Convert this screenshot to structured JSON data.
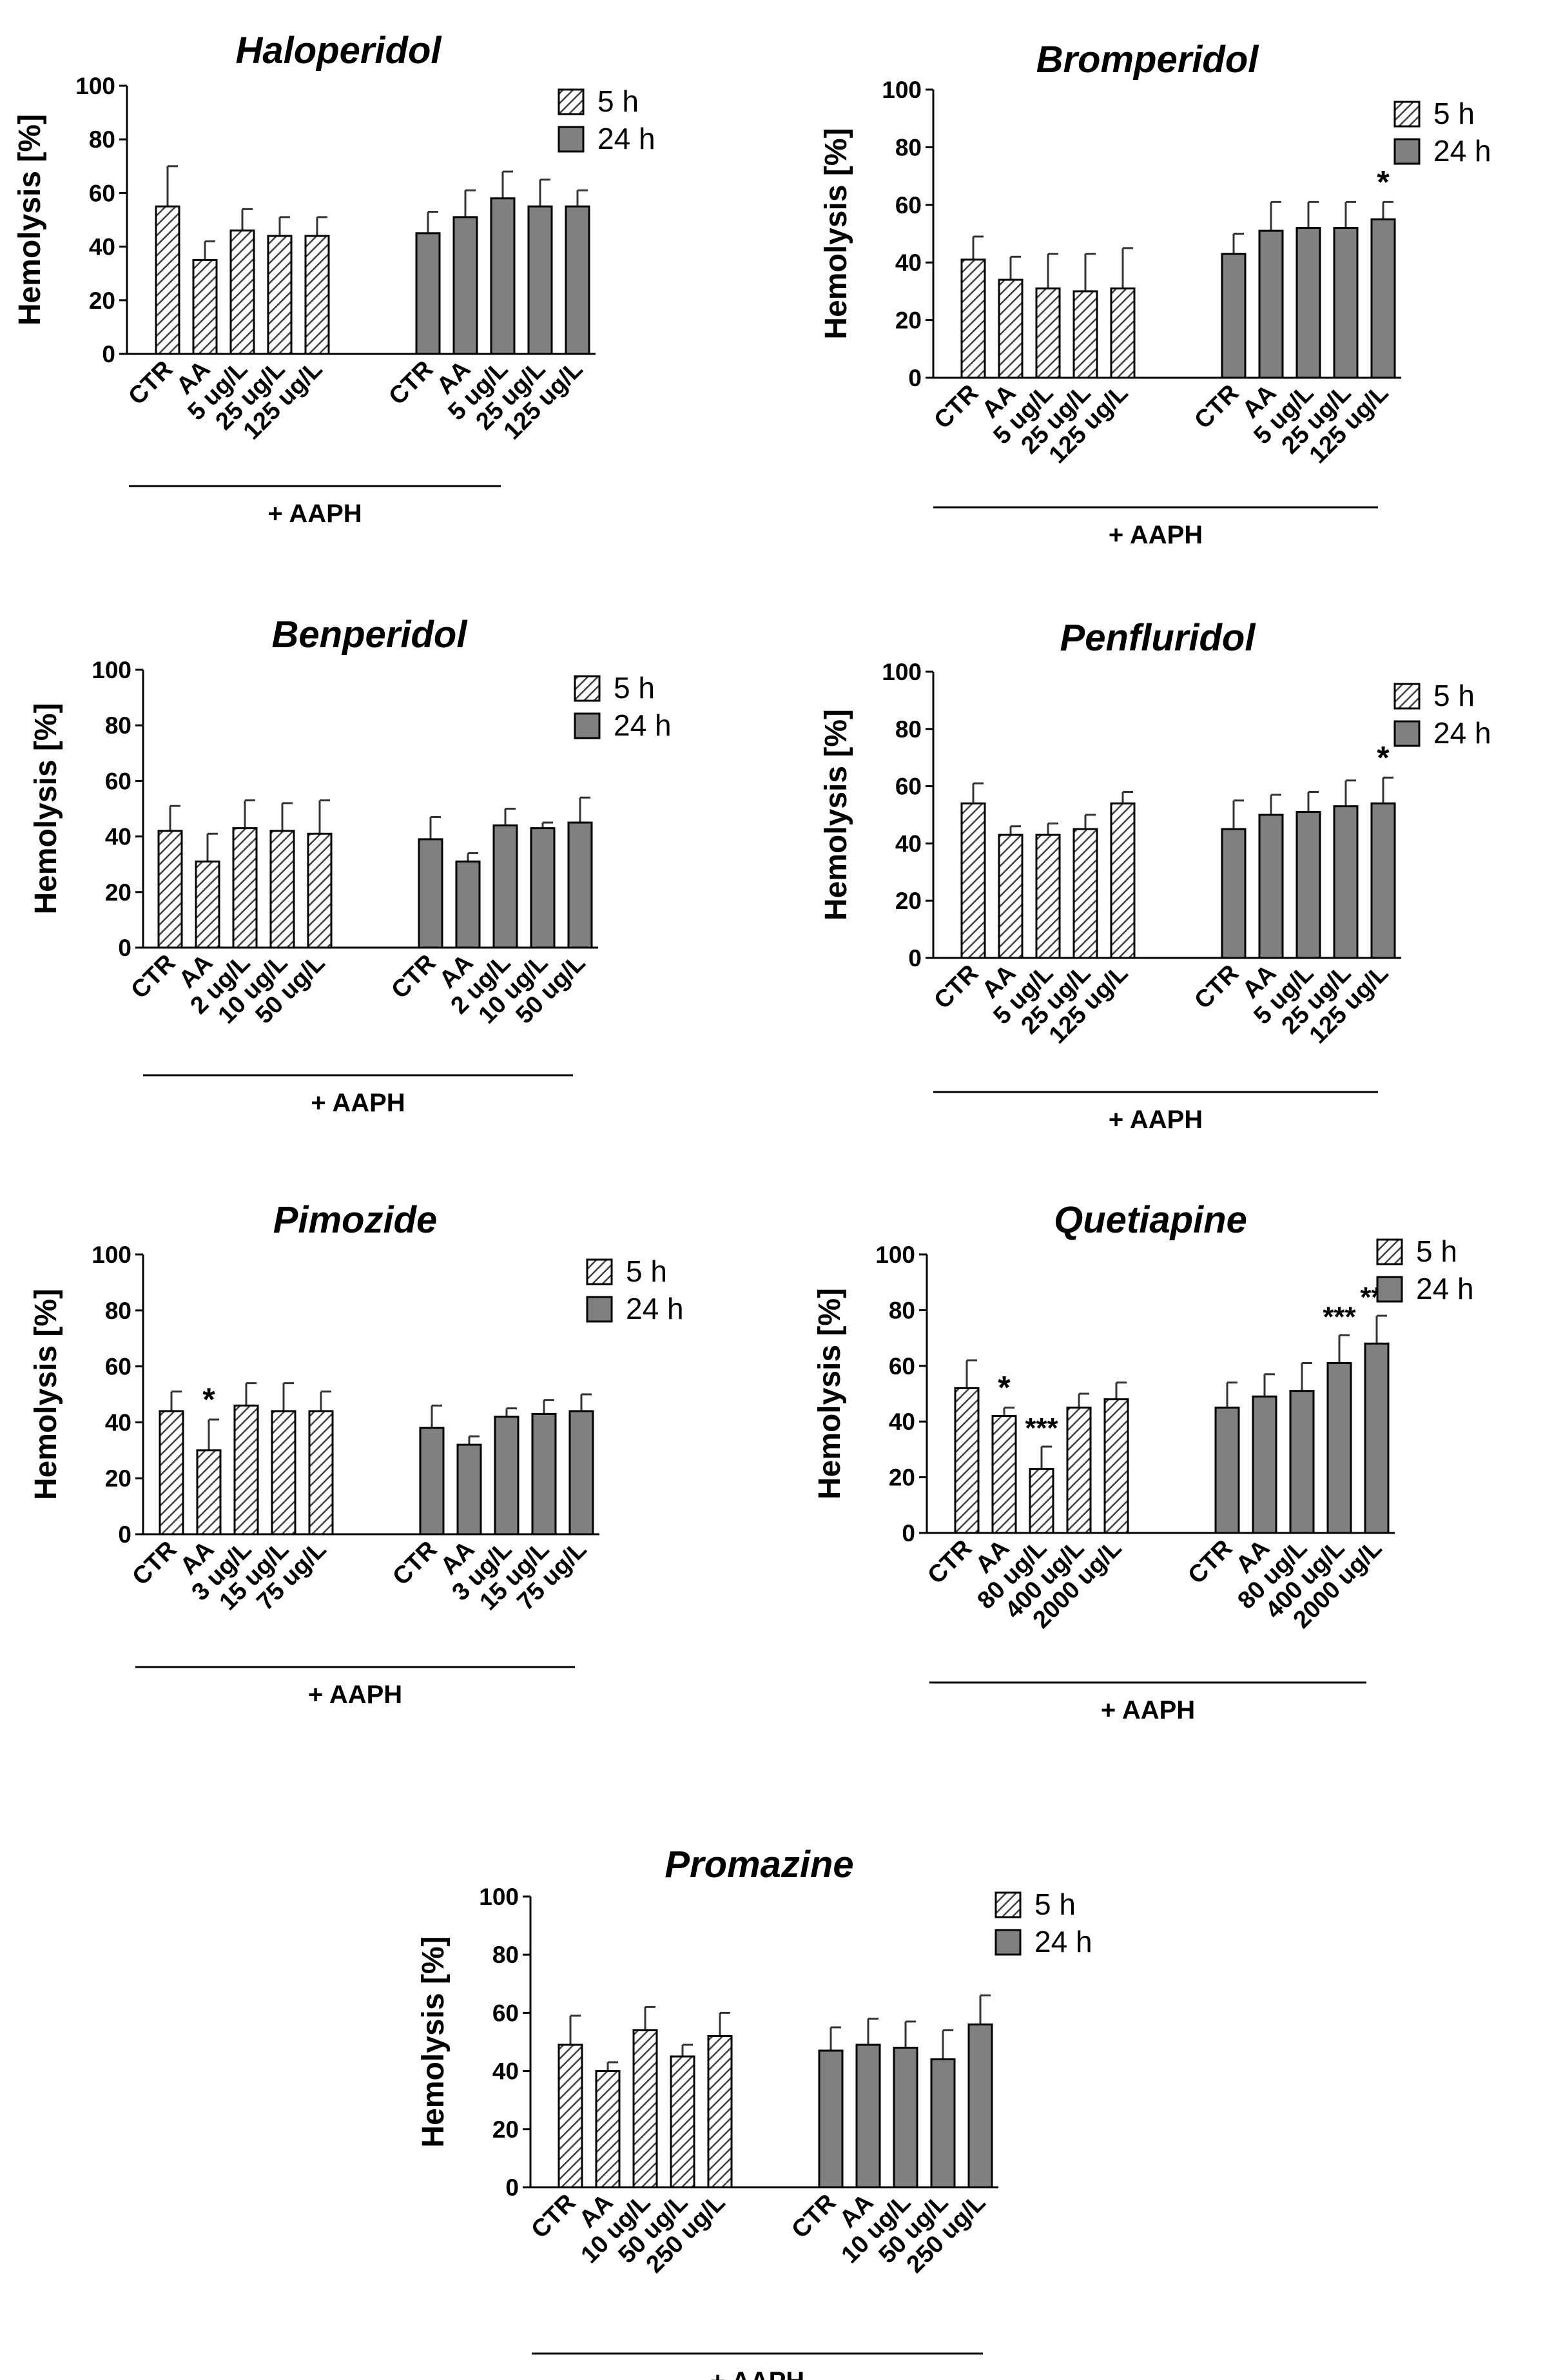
{
  "figure": {
    "common": {
      "ylabel": "Hemolysis [%]",
      "ylim": [
        0,
        100
      ],
      "yticks": [
        "0",
        "20",
        "40",
        "60",
        "80",
        "100"
      ],
      "bracket_label": "+ AAPH",
      "legend": [
        {
          "name": "5 h",
          "pattern": "hatched"
        },
        {
          "name": "24 h",
          "pattern": "solid"
        }
      ],
      "colors": {
        "bar_24h": "#808080",
        "hatch_bg": "#ffffff",
        "hatch_line": "#404040",
        "axis": "#000000"
      }
    }
  },
  "chart_data": [
    {
      "type": "bar",
      "title": "Haloperidol",
      "ylabel": "Hemolysis [%]",
      "ylim": [
        0,
        100
      ],
      "xlabel": "+ AAPH",
      "series": [
        {
          "name": "5 h",
          "categories": [
            "CTR",
            "AA",
            "5 ug/L",
            "25 ug/L",
            "125 ug/L"
          ],
          "values": [
            55,
            35,
            46,
            44,
            44
          ],
          "errors": [
            15,
            7,
            8,
            7,
            7
          ],
          "marks": [
            "",
            "",
            "",
            "",
            ""
          ]
        },
        {
          "name": "24 h",
          "categories": [
            "CTR",
            "AA",
            "5 ug/L",
            "25 ug/L",
            "125 ug/L"
          ],
          "values": [
            45,
            51,
            58,
            55,
            55
          ],
          "errors": [
            8,
            10,
            10,
            10,
            6
          ],
          "marks": [
            "",
            "",
            "",
            "",
            ""
          ]
        }
      ]
    },
    {
      "type": "bar",
      "title": "Bromperidol",
      "ylabel": "Hemolysis [%]",
      "ylim": [
        0,
        100
      ],
      "xlabel": "+ AAPH",
      "series": [
        {
          "name": "5 h",
          "categories": [
            "CTR",
            "AA",
            "5 ug/L",
            "25 ug/L",
            "125 ug/L"
          ],
          "values": [
            41,
            34,
            31,
            30,
            31
          ],
          "errors": [
            8,
            8,
            12,
            13,
            14
          ],
          "marks": [
            "",
            "",
            "",
            "",
            ""
          ]
        },
        {
          "name": "24 h",
          "categories": [
            "CTR",
            "AA",
            "5 ug/L",
            "25 ug/L",
            "125 ug/L"
          ],
          "values": [
            43,
            51,
            52,
            52,
            55
          ],
          "errors": [
            7,
            10,
            9,
            9,
            6
          ],
          "marks": [
            "",
            "",
            "",
            "",
            "*"
          ]
        }
      ]
    },
    {
      "type": "bar",
      "title": "Benperidol",
      "ylabel": "Hemolysis [%]",
      "ylim": [
        0,
        100
      ],
      "xlabel": "+ AAPH",
      "series": [
        {
          "name": "5 h",
          "categories": [
            "CTR",
            "AA",
            "2 ug/L",
            "10 ug/L",
            "50 ug/L"
          ],
          "values": [
            42,
            31,
            43,
            42,
            41
          ],
          "errors": [
            9,
            10,
            10,
            10,
            12
          ],
          "marks": [
            "",
            "",
            "",
            "",
            ""
          ]
        },
        {
          "name": "24 h",
          "categories": [
            "CTR",
            "AA",
            "2 ug/L",
            "10 ug/L",
            "50 ug/L"
          ],
          "values": [
            39,
            31,
            44,
            43,
            45
          ],
          "errors": [
            8,
            3,
            6,
            2,
            9
          ],
          "marks": [
            "",
            "",
            "",
            "",
            ""
          ]
        }
      ]
    },
    {
      "type": "bar",
      "title": "Penfluridol",
      "ylabel": "Hemolysis [%]",
      "ylim": [
        0,
        100
      ],
      "xlabel": "+ AAPH",
      "series": [
        {
          "name": "5 h",
          "categories": [
            "CTR",
            "AA",
            "5 ug/L",
            "25 ug/L",
            "125 ug/L"
          ],
          "values": [
            54,
            43,
            43,
            45,
            54
          ],
          "errors": [
            7,
            3,
            4,
            5,
            4
          ],
          "marks": [
            "",
            "",
            "",
            "",
            ""
          ]
        },
        {
          "name": "24 h",
          "categories": [
            "CTR",
            "AA",
            "5 ug/L",
            "25 ug/L",
            "125 ug/L"
          ],
          "values": [
            45,
            50,
            51,
            53,
            54
          ],
          "errors": [
            10,
            7,
            7,
            9,
            9
          ],
          "marks": [
            "",
            "",
            "",
            "",
            "*"
          ]
        }
      ]
    },
    {
      "type": "bar",
      "title": "Pimozide",
      "ylabel": "Hemolysis [%]",
      "ylim": [
        0,
        100
      ],
      "xlabel": "+ AAPH",
      "series": [
        {
          "name": "5 h",
          "categories": [
            "CTR",
            "AA",
            "3 ug/L",
            "15 ug/L",
            "75 ug/L"
          ],
          "values": [
            44,
            30,
            46,
            44,
            44
          ],
          "errors": [
            7,
            11,
            8,
            10,
            7
          ],
          "marks": [
            "",
            "*",
            "",
            "",
            ""
          ]
        },
        {
          "name": "24 h",
          "categories": [
            "CTR",
            "AA",
            "3 ug/L",
            "15 ug/L",
            "75 ug/L"
          ],
          "values": [
            38,
            32,
            42,
            43,
            44
          ],
          "errors": [
            8,
            3,
            3,
            5,
            6
          ],
          "marks": [
            "",
            "",
            "",
            "",
            ""
          ]
        }
      ]
    },
    {
      "type": "bar",
      "title": "Quetiapine",
      "ylabel": "Hemolysis [%]",
      "ylim": [
        0,
        100
      ],
      "xlabel": "+ AAPH",
      "series": [
        {
          "name": "5 h",
          "categories": [
            "CTR",
            "AA",
            "80 ug/L",
            "400 ug/L",
            "2000 ug/L"
          ],
          "values": [
            52,
            42,
            23,
            45,
            48
          ],
          "errors": [
            10,
            3,
            8,
            5,
            6
          ],
          "marks": [
            "",
            "*",
            "***",
            "",
            ""
          ]
        },
        {
          "name": "24 h",
          "categories": [
            "CTR",
            "AA",
            "80 ug/L",
            "400 ug/L",
            "2000 ug/L"
          ],
          "values": [
            45,
            49,
            51,
            61,
            68
          ],
          "errors": [
            9,
            8,
            10,
            10,
            10
          ],
          "marks": [
            "",
            "",
            "",
            "***",
            "***"
          ]
        }
      ]
    },
    {
      "type": "bar",
      "title": "Promazine",
      "ylabel": "Hemolysis [%]",
      "ylim": [
        0,
        100
      ],
      "xlabel": "+ AAPH",
      "series": [
        {
          "name": "5 h",
          "categories": [
            "CTR",
            "AA",
            "10 ug/L",
            "50 ug/L",
            "250 ug/L"
          ],
          "values": [
            49,
            40,
            54,
            45,
            52
          ],
          "errors": [
            10,
            3,
            8,
            4,
            8
          ],
          "marks": [
            "",
            "",
            "",
            "",
            ""
          ]
        },
        {
          "name": "24 h",
          "categories": [
            "CTR",
            "AA",
            "10 ug/L",
            "50 ug/L",
            "250 ug/L"
          ],
          "values": [
            47,
            49,
            48,
            44,
            56
          ],
          "errors": [
            8,
            9,
            9,
            10,
            10
          ],
          "marks": [
            "",
            "",
            "",
            "",
            ""
          ]
        }
      ]
    }
  ]
}
